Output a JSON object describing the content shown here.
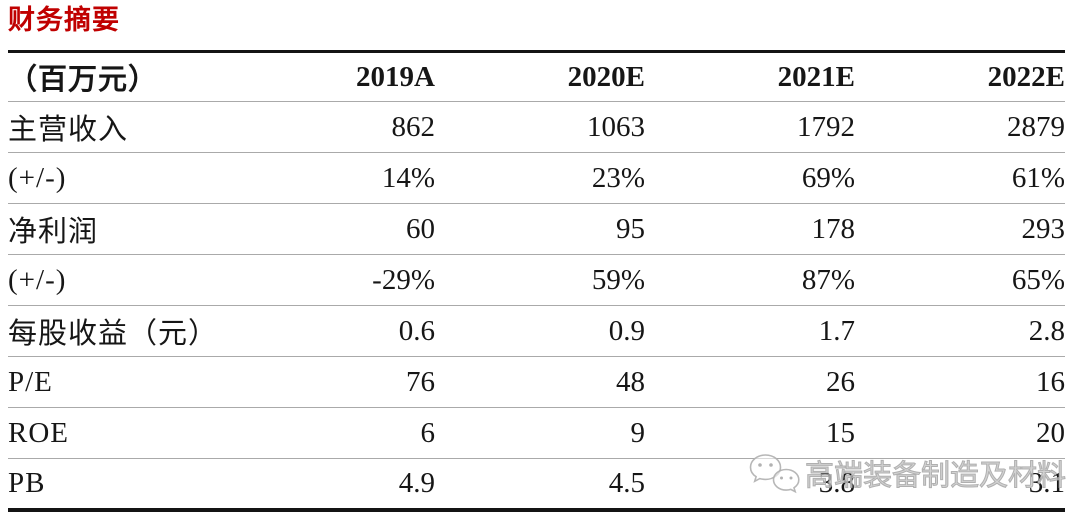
{
  "title": "财务摘要",
  "colors": {
    "title_red": "#c00000",
    "text": "#161616",
    "thick_rule": "#141414",
    "thin_rule": "#aaaaaa",
    "watermark_gray": "#c3c3c3"
  },
  "table": {
    "unit_header": "（百万元）",
    "columns": [
      "2019A",
      "2020E",
      "2021E",
      "2022E"
    ],
    "rows": [
      {
        "label": "主营收入",
        "values": [
          "862",
          "1063",
          "1792",
          "2879"
        ]
      },
      {
        "label": "(+/-)",
        "values": [
          "14%",
          "23%",
          "69%",
          "61%"
        ]
      },
      {
        "label": "净利润",
        "values": [
          "60",
          "95",
          "178",
          "293"
        ]
      },
      {
        "label": "(+/-)",
        "values": [
          "-29%",
          "59%",
          "87%",
          "65%"
        ]
      },
      {
        "label": "每股收益（元）",
        "values": [
          "0.6",
          "0.9",
          "1.7",
          "2.8"
        ]
      },
      {
        "label": "P/E",
        "values": [
          "76",
          "48",
          "26",
          "16"
        ]
      },
      {
        "label": "ROE",
        "values": [
          "6",
          "9",
          "15",
          "20"
        ]
      },
      {
        "label": "PB",
        "values": [
          "4.9",
          "4.5",
          "3.8",
          "3.1"
        ]
      }
    ]
  },
  "watermark": {
    "icon": "wechat-icon",
    "text": "高端装备制造及材料"
  }
}
